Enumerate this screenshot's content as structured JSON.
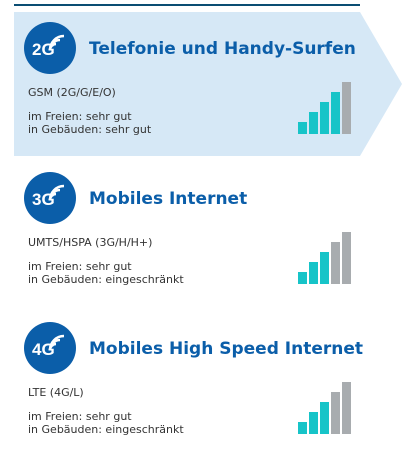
{
  "colors": {
    "brand_blue": "#0b5ea9",
    "active_bg": "#d6e8f6",
    "bar_on": "#17c4c8",
    "bar_off": "#a8acaf"
  },
  "cards": [
    {
      "generation": "2G",
      "title": "Telefonie und Handy-Surfen",
      "tech": "GSM (2G/G/E/O)",
      "outdoor": "im Freien: sehr gut",
      "indoor": "in Gebäuden: sehr gut",
      "active": true,
      "signal_bars_lit": 4,
      "signal_bars_total": 5
    },
    {
      "generation": "3G",
      "title": "Mobiles Internet",
      "tech": "UMTS/HSPA (3G/H/H+)",
      "outdoor": "im Freien: sehr gut",
      "indoor": "in Gebäuden: eingeschränkt",
      "active": false,
      "signal_bars_lit": 3,
      "signal_bars_total": 5
    },
    {
      "generation": "4G",
      "title": "Mobiles High Speed Internet",
      "tech": "LTE (4G/L)",
      "outdoor": "im Freien: sehr gut",
      "indoor": "in Gebäuden: eingeschränkt",
      "active": false,
      "signal_bars_lit": 3,
      "signal_bars_total": 5
    }
  ]
}
